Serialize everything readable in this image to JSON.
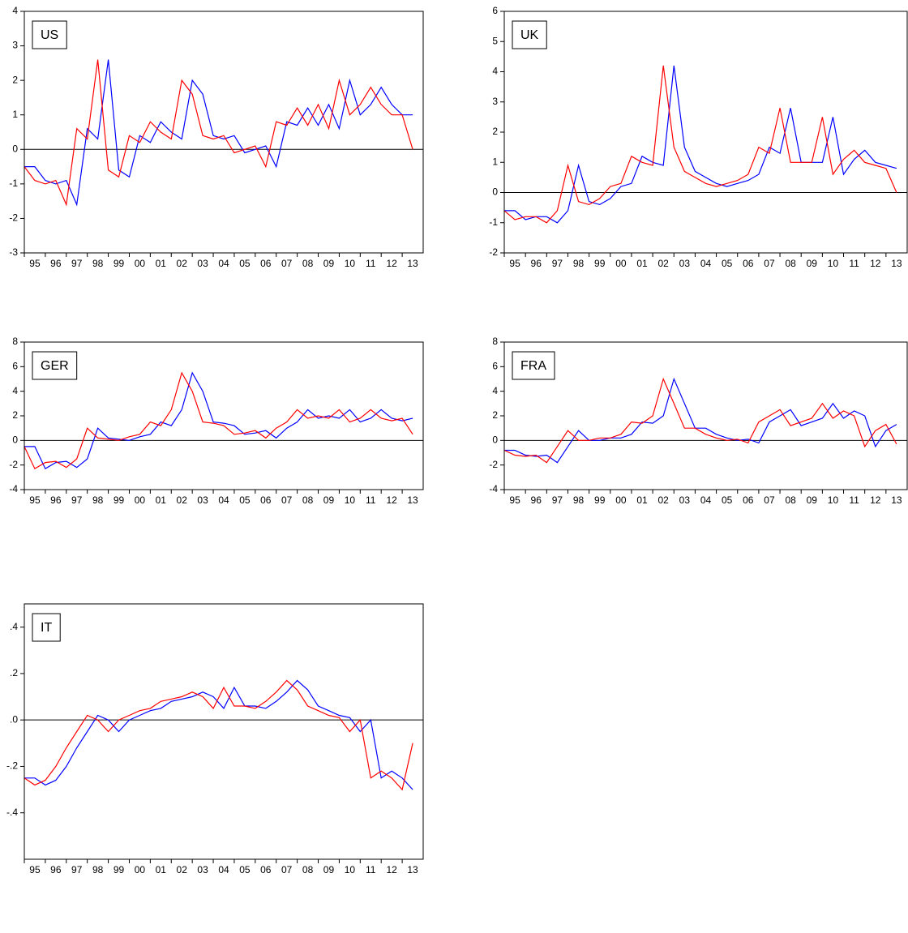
{
  "chart_data": [
    {
      "type": "line",
      "title": "US",
      "x": [
        1995.0,
        1995.5,
        1996.0,
        1996.5,
        1997.0,
        1997.5,
        1998.0,
        1998.5,
        1999.0,
        1999.5,
        2000.0,
        2000.5,
        2001.0,
        2001.5,
        2002.0,
        2002.5,
        2003.0,
        2003.5,
        2004.0,
        2004.5,
        2005.0,
        2005.5,
        2006.0,
        2006.5,
        2007.0,
        2007.5,
        2008.0,
        2008.5,
        2009.0,
        2009.5,
        2010.0,
        2010.5,
        2011.0,
        2011.5,
        2012.0,
        2012.5,
        2013.0,
        2013.5
      ],
      "series": [
        {
          "color": "#0000ff",
          "values": [
            -0.5,
            -0.5,
            -0.9,
            -1.0,
            -0.9,
            -1.6,
            0.6,
            0.3,
            2.6,
            -0.6,
            -0.8,
            0.4,
            0.2,
            0.8,
            0.5,
            0.3,
            2.0,
            1.6,
            0.4,
            0.3,
            0.4,
            -0.1,
            0.0,
            0.1,
            -0.5,
            0.8,
            0.7,
            1.2,
            0.7,
            1.3,
            0.6,
            2.0,
            1.0,
            1.3,
            1.8,
            1.3,
            1.0,
            1.0
          ]
        },
        {
          "color": "#ff0000",
          "values": [
            -0.5,
            -0.9,
            -1.0,
            -0.9,
            -1.6,
            0.6,
            0.3,
            2.6,
            -0.6,
            -0.8,
            0.4,
            0.2,
            0.8,
            0.5,
            0.3,
            2.0,
            1.6,
            0.4,
            0.3,
            0.4,
            -0.1,
            0.0,
            0.1,
            -0.5,
            0.8,
            0.7,
            1.2,
            0.7,
            1.3,
            0.6,
            2.0,
            1.0,
            1.3,
            1.8,
            1.3,
            1.0,
            1.0,
            0.0
          ]
        }
      ],
      "xlim": [
        1995,
        2014
      ],
      "xticks": [
        {
          "value": 1995,
          "label": "95"
        },
        {
          "value": 1996,
          "label": "96"
        },
        {
          "value": 1997,
          "label": "97"
        },
        {
          "value": 1998,
          "label": "98"
        },
        {
          "value": 1999,
          "label": "99"
        },
        {
          "value": 2000,
          "label": "00"
        },
        {
          "value": 2001,
          "label": "01"
        },
        {
          "value": 2002,
          "label": "02"
        },
        {
          "value": 2003,
          "label": "03"
        },
        {
          "value": 2004,
          "label": "04"
        },
        {
          "value": 2005,
          "label": "05"
        },
        {
          "value": 2006,
          "label": "06"
        },
        {
          "value": 2007,
          "label": "07"
        },
        {
          "value": 2008,
          "label": "08"
        },
        {
          "value": 2009,
          "label": "09"
        },
        {
          "value": 2010,
          "label": "10"
        },
        {
          "value": 2011,
          "label": "11"
        },
        {
          "value": 2012,
          "label": "12"
        },
        {
          "value": 2013,
          "label": "13"
        }
      ],
      "ylim": [
        -3,
        4
      ],
      "yticks": [
        -3,
        -2,
        -1,
        0,
        1,
        2,
        3,
        4
      ],
      "hline": 0
    },
    {
      "type": "line",
      "title": "UK",
      "x": [
        1995.0,
        1995.5,
        1996.0,
        1996.5,
        1997.0,
        1997.5,
        1998.0,
        1998.5,
        1999.0,
        1999.5,
        2000.0,
        2000.5,
        2001.0,
        2001.5,
        2002.0,
        2002.5,
        2003.0,
        2003.5,
        2004.0,
        2004.5,
        2005.0,
        2005.5,
        2006.0,
        2006.5,
        2007.0,
        2007.5,
        2008.0,
        2008.5,
        2009.0,
        2009.5,
        2010.0,
        2010.5,
        2011.0,
        2011.5,
        2012.0,
        2012.5,
        2013.0,
        2013.5
      ],
      "series": [
        {
          "color": "#0000ff",
          "values": [
            -0.6,
            -0.6,
            -0.9,
            -0.8,
            -0.8,
            -1.0,
            -0.6,
            0.9,
            -0.3,
            -0.4,
            -0.2,
            0.2,
            0.3,
            1.2,
            1.0,
            0.9,
            4.2,
            1.5,
            0.7,
            0.5,
            0.3,
            0.2,
            0.3,
            0.4,
            0.6,
            1.5,
            1.3,
            2.8,
            1.0,
            1.0,
            1.0,
            2.5,
            0.6,
            1.1,
            1.4,
            1.0,
            0.9,
            0.8
          ]
        },
        {
          "color": "#ff0000",
          "values": [
            -0.6,
            -0.9,
            -0.8,
            -0.8,
            -1.0,
            -0.6,
            0.9,
            -0.3,
            -0.4,
            -0.2,
            0.2,
            0.3,
            1.2,
            1.0,
            0.9,
            4.2,
            1.5,
            0.7,
            0.5,
            0.3,
            0.2,
            0.3,
            0.4,
            0.6,
            1.5,
            1.3,
            2.8,
            1.0,
            1.0,
            1.0,
            2.5,
            0.6,
            1.1,
            1.4,
            1.0,
            0.9,
            0.8,
            0.0
          ]
        }
      ],
      "xlim": [
        1995,
        2014
      ],
      "xticks": [
        {
          "value": 1995,
          "label": "95"
        },
        {
          "value": 1996,
          "label": "96"
        },
        {
          "value": 1997,
          "label": "97"
        },
        {
          "value": 1998,
          "label": "98"
        },
        {
          "value": 1999,
          "label": "99"
        },
        {
          "value": 2000,
          "label": "00"
        },
        {
          "value": 2001,
          "label": "01"
        },
        {
          "value": 2002,
          "label": "02"
        },
        {
          "value": 2003,
          "label": "03"
        },
        {
          "value": 2004,
          "label": "04"
        },
        {
          "value": 2005,
          "label": "05"
        },
        {
          "value": 2006,
          "label": "06"
        },
        {
          "value": 2007,
          "label": "07"
        },
        {
          "value": 2008,
          "label": "08"
        },
        {
          "value": 2009,
          "label": "09"
        },
        {
          "value": 2010,
          "label": "10"
        },
        {
          "value": 2011,
          "label": "11"
        },
        {
          "value": 2012,
          "label": "12"
        },
        {
          "value": 2013,
          "label": "13"
        }
      ],
      "ylim": [
        -2,
        6
      ],
      "yticks": [
        -2,
        -1,
        0,
        1,
        2,
        3,
        4,
        5,
        6
      ],
      "hline": 0
    },
    {
      "type": "line",
      "title": "GER",
      "x": [
        1995.0,
        1995.5,
        1996.0,
        1996.5,
        1997.0,
        1997.5,
        1998.0,
        1998.5,
        1999.0,
        1999.5,
        2000.0,
        2000.5,
        2001.0,
        2001.5,
        2002.0,
        2002.5,
        2003.0,
        2003.5,
        2004.0,
        2004.5,
        2005.0,
        2005.5,
        2006.0,
        2006.5,
        2007.0,
        2007.5,
        2008.0,
        2008.5,
        2009.0,
        2009.5,
        2010.0,
        2010.5,
        2011.0,
        2011.5,
        2012.0,
        2012.5,
        2013.0,
        2013.5
      ],
      "series": [
        {
          "color": "#0000ff",
          "values": [
            -0.5,
            -0.5,
            -2.3,
            -1.8,
            -1.7,
            -2.2,
            -1.5,
            1.0,
            0.2,
            0.1,
            0.0,
            0.3,
            0.5,
            1.5,
            1.2,
            2.5,
            5.5,
            4.0,
            1.5,
            1.4,
            1.2,
            0.5,
            0.6,
            0.8,
            0.2,
            1.0,
            1.5,
            2.5,
            1.8,
            2.0,
            1.8,
            2.5,
            1.5,
            1.8,
            2.5,
            1.8,
            1.6,
            1.8
          ]
        },
        {
          "color": "#ff0000",
          "values": [
            -0.5,
            -2.3,
            -1.8,
            -1.7,
            -2.2,
            -1.5,
            1.0,
            0.2,
            0.1,
            0.0,
            0.3,
            0.5,
            1.5,
            1.2,
            2.5,
            5.5,
            4.0,
            1.5,
            1.4,
            1.2,
            0.5,
            0.6,
            0.8,
            0.2,
            1.0,
            1.5,
            2.5,
            1.8,
            2.0,
            1.8,
            2.5,
            1.5,
            1.8,
            2.5,
            1.8,
            1.6,
            1.8,
            0.5
          ]
        }
      ],
      "xlim": [
        1995,
        2014
      ],
      "xticks": [
        {
          "value": 1995,
          "label": "95"
        },
        {
          "value": 1996,
          "label": "96"
        },
        {
          "value": 1997,
          "label": "97"
        },
        {
          "value": 1998,
          "label": "98"
        },
        {
          "value": 1999,
          "label": "99"
        },
        {
          "value": 2000,
          "label": "00"
        },
        {
          "value": 2001,
          "label": "01"
        },
        {
          "value": 2002,
          "label": "02"
        },
        {
          "value": 2003,
          "label": "03"
        },
        {
          "value": 2004,
          "label": "04"
        },
        {
          "value": 2005,
          "label": "05"
        },
        {
          "value": 2006,
          "label": "06"
        },
        {
          "value": 2007,
          "label": "07"
        },
        {
          "value": 2008,
          "label": "08"
        },
        {
          "value": 2009,
          "label": "09"
        },
        {
          "value": 2010,
          "label": "10"
        },
        {
          "value": 2011,
          "label": "11"
        },
        {
          "value": 2012,
          "label": "12"
        },
        {
          "value": 2013,
          "label": "13"
        }
      ],
      "ylim": [
        -4,
        8
      ],
      "yticks": [
        -4,
        -2,
        0,
        2,
        4,
        6,
        8
      ],
      "hline": 0
    },
    {
      "type": "line",
      "title": "FRA",
      "x": [
        1995.0,
        1995.5,
        1996.0,
        1996.5,
        1997.0,
        1997.5,
        1998.0,
        1998.5,
        1999.0,
        1999.5,
        2000.0,
        2000.5,
        2001.0,
        2001.5,
        2002.0,
        2002.5,
        2003.0,
        2003.5,
        2004.0,
        2004.5,
        2005.0,
        2005.5,
        2006.0,
        2006.5,
        2007.0,
        2007.5,
        2008.0,
        2008.5,
        2009.0,
        2009.5,
        2010.0,
        2010.5,
        2011.0,
        2011.5,
        2012.0,
        2012.5,
        2013.0,
        2013.5
      ],
      "series": [
        {
          "color": "#0000ff",
          "values": [
            -0.8,
            -0.8,
            -1.2,
            -1.3,
            -1.2,
            -1.8,
            -0.5,
            0.8,
            0.0,
            0.0,
            0.2,
            0.2,
            0.5,
            1.5,
            1.4,
            2.0,
            5.0,
            3.0,
            1.0,
            1.0,
            0.5,
            0.2,
            0.0,
            0.1,
            -0.2,
            1.5,
            2.0,
            2.5,
            1.2,
            1.5,
            1.8,
            3.0,
            1.8,
            2.4,
            2.0,
            -0.5,
            0.8,
            1.3
          ]
        },
        {
          "color": "#ff0000",
          "values": [
            -0.8,
            -1.2,
            -1.3,
            -1.2,
            -1.8,
            -0.5,
            0.8,
            0.0,
            0.0,
            0.2,
            0.2,
            0.5,
            1.5,
            1.4,
            2.0,
            5.0,
            3.0,
            1.0,
            1.0,
            0.5,
            0.2,
            0.0,
            0.1,
            -0.2,
            1.5,
            2.0,
            2.5,
            1.2,
            1.5,
            1.8,
            3.0,
            1.8,
            2.4,
            2.0,
            -0.5,
            0.8,
            1.3,
            -0.3
          ]
        }
      ],
      "xlim": [
        1995,
        2014
      ],
      "xticks": [
        {
          "value": 1995,
          "label": "95"
        },
        {
          "value": 1996,
          "label": "96"
        },
        {
          "value": 1997,
          "label": "97"
        },
        {
          "value": 1998,
          "label": "98"
        },
        {
          "value": 1999,
          "label": "99"
        },
        {
          "value": 2000,
          "label": "00"
        },
        {
          "value": 2001,
          "label": "01"
        },
        {
          "value": 2002,
          "label": "02"
        },
        {
          "value": 2003,
          "label": "03"
        },
        {
          "value": 2004,
          "label": "04"
        },
        {
          "value": 2005,
          "label": "05"
        },
        {
          "value": 2006,
          "label": "06"
        },
        {
          "value": 2007,
          "label": "07"
        },
        {
          "value": 2008,
          "label": "08"
        },
        {
          "value": 2009,
          "label": "09"
        },
        {
          "value": 2010,
          "label": "10"
        },
        {
          "value": 2011,
          "label": "11"
        },
        {
          "value": 2012,
          "label": "12"
        },
        {
          "value": 2013,
          "label": "13"
        }
      ],
      "ylim": [
        -4,
        8
      ],
      "yticks": [
        -4,
        -2,
        0,
        2,
        4,
        6,
        8
      ],
      "hline": 0
    },
    {
      "type": "line",
      "title": "IT",
      "x": [
        1995.0,
        1995.5,
        1996.0,
        1996.5,
        1997.0,
        1997.5,
        1998.0,
        1998.5,
        1999.0,
        1999.5,
        2000.0,
        2000.5,
        2001.0,
        2001.5,
        2002.0,
        2002.5,
        2003.0,
        2003.5,
        2004.0,
        2004.5,
        2005.0,
        2005.5,
        2006.0,
        2006.5,
        2007.0,
        2007.5,
        2008.0,
        2008.5,
        2009.0,
        2009.5,
        2010.0,
        2010.5,
        2011.0,
        2011.5,
        2012.0,
        2012.5,
        2013.0,
        2013.5
      ],
      "series": [
        {
          "color": "#0000ff",
          "values": [
            -0.25,
            -0.25,
            -0.28,
            -0.26,
            -0.2,
            -0.12,
            -0.05,
            0.02,
            0.0,
            -0.05,
            0.0,
            0.02,
            0.04,
            0.05,
            0.08,
            0.09,
            0.1,
            0.12,
            0.1,
            0.05,
            0.14,
            0.06,
            0.06,
            0.05,
            0.08,
            0.12,
            0.17,
            0.13,
            0.06,
            0.04,
            0.02,
            0.01,
            -0.05,
            0.0,
            -0.25,
            -0.22,
            -0.25,
            -0.3
          ]
        },
        {
          "color": "#ff0000",
          "values": [
            -0.25,
            -0.28,
            -0.26,
            -0.2,
            -0.12,
            -0.05,
            0.02,
            0.0,
            -0.05,
            0.0,
            0.02,
            0.04,
            0.05,
            0.08,
            0.09,
            0.1,
            0.12,
            0.1,
            0.05,
            0.14,
            0.06,
            0.06,
            0.05,
            0.08,
            0.12,
            0.17,
            0.13,
            0.06,
            0.04,
            0.02,
            0.01,
            -0.05,
            0.0,
            -0.25,
            -0.22,
            -0.25,
            -0.3,
            -0.1
          ]
        }
      ],
      "xlim": [
        1995,
        2014
      ],
      "xticks": [
        {
          "value": 1995,
          "label": "95"
        },
        {
          "value": 1996,
          "label": "96"
        },
        {
          "value": 1997,
          "label": "97"
        },
        {
          "value": 1998,
          "label": "98"
        },
        {
          "value": 1999,
          "label": "99"
        },
        {
          "value": 2000,
          "label": "00"
        },
        {
          "value": 2001,
          "label": "01"
        },
        {
          "value": 2002,
          "label": "02"
        },
        {
          "value": 2003,
          "label": "03"
        },
        {
          "value": 2004,
          "label": "04"
        },
        {
          "value": 2005,
          "label": "05"
        },
        {
          "value": 2006,
          "label": "06"
        },
        {
          "value": 2007,
          "label": "07"
        },
        {
          "value": 2008,
          "label": "08"
        },
        {
          "value": 2009,
          "label": "09"
        },
        {
          "value": 2010,
          "label": "10"
        },
        {
          "value": 2011,
          "label": "11"
        },
        {
          "value": 2012,
          "label": "12"
        },
        {
          "value": 2013,
          "label": "13"
        }
      ],
      "ylim": [
        -0.6,
        0.5
      ],
      "yticks": [
        {
          "value": -0.4,
          "label": "-.4"
        },
        {
          "value": -0.2,
          "label": "-.2"
        },
        {
          "value": 0,
          "label": ".0"
        },
        {
          "value": 0.2,
          "label": ".2"
        },
        {
          "value": 0.4,
          "label": ".4"
        }
      ],
      "hline": 0
    }
  ]
}
